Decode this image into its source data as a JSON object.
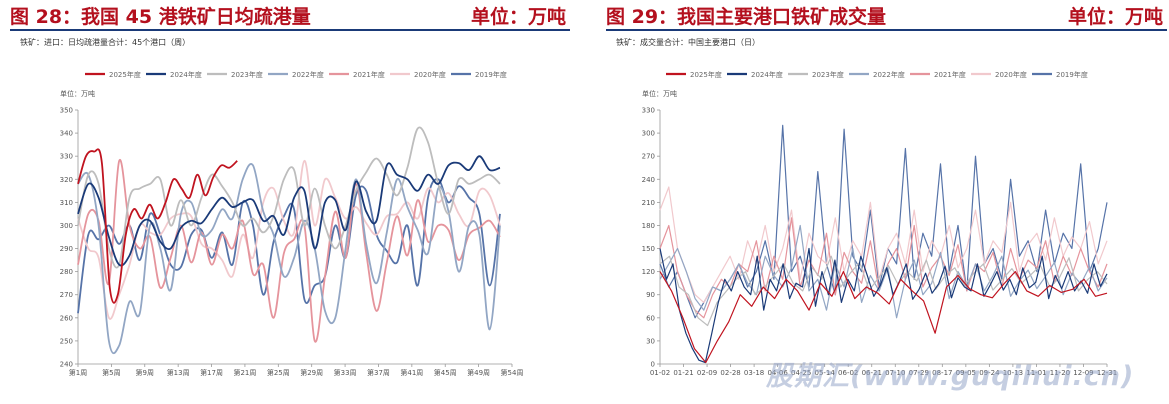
{
  "charts": [
    {
      "title": "图 28：我国 45 港铁矿日均疏港量",
      "unit": "单位：万吨",
      "subtitle": "铁矿：进口：日均疏港量合计：45个港口（周）"
    },
    {
      "title": "图 29：我国主要港口铁矿成交量",
      "unit": "单位：万吨",
      "subtitle": "铁矿：成交量合计：中国主要港口（日）"
    }
  ],
  "watermark": "股期汇(www.guqihui.cn)",
  "chart_data": [
    {
      "type": "line",
      "ylabel": "单位：万吨",
      "ylim": [
        240,
        350
      ],
      "yticks": [
        240,
        250,
        260,
        270,
        280,
        290,
        300,
        310,
        320,
        330,
        340,
        350
      ],
      "xlim": [
        1,
        54
      ],
      "xticks": [
        "第1周",
        "第5周",
        "第9周",
        "第13周",
        "第17周",
        "第21周",
        "第25周",
        "第29周",
        "第33周",
        "第37周",
        "第41周",
        "第45周",
        "第49周",
        "第54周"
      ],
      "legend_position": "top",
      "series": [
        {
          "name": "2025年度",
          "color": "#c0131f",
          "values": [
            318,
            330,
            332,
            327,
            273,
            270,
            296,
            307,
            303,
            309,
            303,
            310,
            320,
            316,
            312,
            322,
            313,
            321,
            326,
            325,
            328
          ]
        },
        {
          "name": "2024年度",
          "color": "#1a3a78",
          "values": [
            305,
            318,
            312,
            295,
            283,
            287,
            300,
            302,
            293,
            290,
            299,
            302,
            301,
            307,
            312,
            308,
            310,
            311,
            302,
            304,
            296,
            312,
            315,
            290,
            310,
            311,
            298,
            319,
            306,
            302,
            326,
            322,
            320,
            315,
            322,
            318,
            326,
            327,
            324,
            330,
            324,
            325
          ]
        },
        {
          "name": "2023年度",
          "color": "#bdbdbd",
          "values": [
            300,
            322,
            318,
            290,
            283,
            312,
            316,
            318,
            320,
            300,
            311,
            300,
            312,
            322,
            317,
            310,
            300,
            303,
            297,
            304,
            320,
            324,
            300,
            316,
            300,
            290,
            300,
            315,
            323,
            329,
            322,
            313,
            325,
            342,
            336,
            318,
            305,
            320,
            318,
            320,
            322,
            318
          ]
        },
        {
          "name": "2022年度",
          "color": "#92a6c4",
          "values": [
            318,
            322,
            300,
            250,
            248,
            267,
            262,
            300,
            290,
            272,
            305,
            310,
            296,
            298,
            307,
            303,
            320,
            326,
            306,
            296,
            278,
            286,
            302,
            290,
            263,
            260,
            290,
            320,
            292,
            275,
            297,
            320,
            308,
            298,
            288,
            316,
            306,
            280,
            300,
            296,
            255,
            300
          ]
        },
        {
          "name": "2021年度",
          "color": "#e5949c",
          "values": [
            283,
            305,
            302,
            275,
            328,
            300,
            290,
            295,
            273,
            286,
            300,
            284,
            297,
            283,
            296,
            290,
            302,
            279,
            283,
            260,
            288,
            294,
            300,
            250,
            278,
            306,
            286,
            318,
            288,
            263,
            284,
            304,
            287,
            311,
            293,
            300,
            298,
            285,
            296,
            299,
            302,
            295
          ]
        },
        {
          "name": "2020年度",
          "color": "#f1c9cd",
          "values": [
            303,
            290,
            286,
            260,
            270,
            283,
            300,
            297,
            296,
            303,
            305,
            304,
            292,
            290,
            285,
            278,
            296,
            286,
            310,
            316,
            302,
            297,
            328,
            300,
            320,
            312,
            303,
            308,
            301,
            296,
            304,
            305,
            310,
            303,
            316,
            310,
            314,
            305,
            300,
            315,
            313,
            300
          ]
        },
        {
          "name": "2019年度",
          "color": "#5673a8",
          "values": [
            262,
            296,
            294,
            300,
            292,
            300,
            285,
            305,
            296,
            283,
            282,
            296,
            298,
            286,
            297,
            283,
            310,
            300,
            270,
            293,
            304,
            307,
            268,
            274,
            278,
            300,
            286,
            313,
            315,
            296,
            289,
            284,
            300,
            274,
            312,
            320,
            310,
            317,
            312,
            305,
            274,
            305
          ]
        }
      ]
    },
    {
      "type": "line",
      "ylabel": "单位：万吨",
      "ylim": [
        0,
        330
      ],
      "yticks": [
        0,
        30,
        60,
        90,
        120,
        150,
        180,
        210,
        240,
        270,
        300,
        330
      ],
      "xticks": [
        "01-02",
        "01-21",
        "02-09",
        "02-28",
        "03-18",
        "04-06",
        "04-25",
        "05-14",
        "06-02",
        "06-21",
        "07-10",
        "07-29",
        "08-17",
        "09-05",
        "09-24",
        "10-13",
        "11-01",
        "11-20",
        "12-09",
        "12-31"
      ],
      "legend_position": "top",
      "series": [
        {
          "name": "2025年度",
          "color": "#c0131f",
          "values": [
            120,
            95,
            60,
            20,
            2,
            30,
            55,
            90,
            75,
            100,
            85,
            110,
            95,
            70,
            105,
            88,
            120,
            85,
            100,
            92,
            78,
            110,
            95,
            82,
            40,
            100,
            115,
            98,
            90,
            86,
            104,
            120,
            95,
            88,
            102,
            93,
            97,
            110,
            88,
            92
          ]
        },
        {
          "name": "2024年度",
          "color": "#1a3a78",
          "values": [
            150,
            110,
            130,
            70,
            40,
            20,
            5,
            2,
            40,
            80,
            110,
            95,
            120,
            100,
            90,
            140,
            70,
            110,
            95,
            130,
            85,
            105,
            100,
            150,
            75,
            120,
            90,
            135,
            80,
            110,
            95,
            140,
            115,
            88,
            102,
            125,
            90,
            108,
            130,
            84,
            97,
            118,
            92,
            104,
            127,
            86,
            112,
            100,
            95,
            130,
            88,
            103,
            120,
            96,
            110,
            90,
            125,
            99,
            106,
            140,
            85,
            115,
            98,
            120,
            95,
            108,
            92,
            130,
            101,
            117
          ]
        },
        {
          "name": "2023年度",
          "color": "#bdbdbd",
          "values": [
            130,
            140,
            100,
            90,
            60,
            50,
            80,
            95,
            110,
            120,
            90,
            100,
            115,
            130,
            105,
            95,
            125,
            110,
            140,
            100,
            118,
            132,
            96,
            112,
            128,
            104,
            120,
            108,
            135,
            97,
            115,
            125,
            102,
            118,
            130,
            96,
            110,
            124,
            105,
            116,
            128,
            100,
            112,
            138,
            95,
            110,
            120,
            104
          ]
        },
        {
          "name": "2022年度",
          "color": "#92a6c4",
          "values": [
            110,
            130,
            150,
            120,
            85,
            70,
            100,
            95,
            110,
            130,
            105,
            90,
            140,
            115,
            100,
            125,
            180,
            95,
            110,
            70,
            130,
            100,
            150,
            80,
            115,
            95,
            125,
            60,
            110,
            135,
            90,
            105,
            145,
            85,
            120,
            100,
            130,
            95,
            115,
            140,
            88,
            108,
            122,
            98,
            114,
            132,
            90,
            118,
            104,
            126,
            95,
            112
          ]
        },
        {
          "name": "2021年度",
          "color": "#e5949c",
          "values": [
            150,
            180,
            120,
            90,
            70,
            60,
            90,
            110,
            100,
            130,
            120,
            160,
            95,
            140,
            110,
            190,
            100,
            135,
            115,
            170,
            90,
            145,
            120,
            105,
            160,
            95,
            130,
            150,
            110,
            180,
            100,
            125,
            140,
            115,
            155,
            95,
            130,
            120,
            145,
            100,
            150,
            110,
            135,
            125,
            160,
            105,
            140,
            115,
            150,
            120,
            100,
            130
          ]
        },
        {
          "name": "2020年度",
          "color": "#f1c9cd",
          "values": [
            200,
            230,
            150,
            120,
            90,
            80,
            100,
            120,
            140,
            110,
            160,
            130,
            180,
            120,
            150,
            200,
            110,
            170,
            140,
            130,
            190,
            120,
            160,
            140,
            210,
            110,
            150,
            170,
            130,
            200,
            120,
            160,
            140,
            180,
            125,
            150,
            200,
            130,
            160,
            145,
            210,
            120,
            155,
            170,
            135,
            190,
            140,
            165,
            150,
            185,
            130,
            160
          ]
        },
        {
          "name": "2019年度",
          "color": "#5673a8",
          "values": [
            130,
            100,
            120,
            90,
            60,
            80,
            100,
            95,
            110,
            130,
            100,
            120,
            160,
            110,
            310,
            120,
            140,
            100,
            250,
            130,
            90,
            305,
            140,
            120,
            200,
            100,
            150,
            130,
            280,
            110,
            170,
            140,
            260,
            120,
            180,
            95,
            270,
            130,
            150,
            110,
            240,
            140,
            160,
            120,
            200,
            130,
            170,
            150,
            260,
            120,
            150,
            210
          ]
        }
      ]
    }
  ]
}
